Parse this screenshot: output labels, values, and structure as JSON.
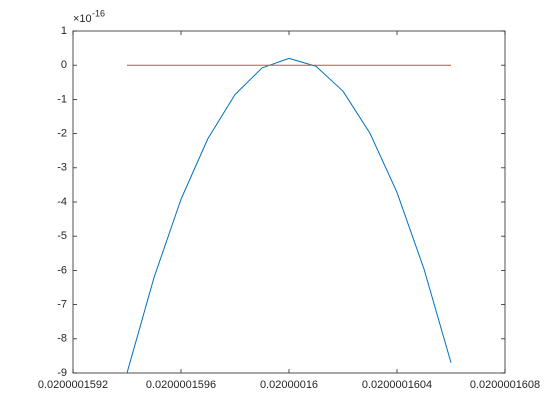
{
  "chart_data": {
    "type": "line",
    "axis_exponent_base": "×10",
    "axis_exponent": "-16",
    "x": [
      0.0200001594,
      0.0200001595,
      0.0200001596,
      0.0200001597,
      0.0200001598,
      0.0200001599,
      0.02000016,
      0.0200001601,
      0.0200001602,
      0.0200001603,
      0.0200001604,
      0.0200001605,
      0.0200001606
    ],
    "series": [
      {
        "color": "#0072bd",
        "values": [
          -9.0,
          -6.21,
          -3.92,
          -2.14,
          -0.86,
          -0.08,
          0.2,
          -0.03,
          -0.76,
          -1.99,
          -3.72,
          -5.96,
          -8.7
        ]
      },
      {
        "color": "#d95319",
        "values": [
          0,
          0,
          0,
          0,
          0,
          0,
          0,
          0,
          0,
          0,
          0,
          0,
          0
        ]
      }
    ],
    "xlim": [
      0.0200001592,
      0.0200001608
    ],
    "xticks": [
      {
        "value": 0.0200001592,
        "label": "0.0200001592"
      },
      {
        "value": 0.0200001596,
        "label": "0.0200001596"
      },
      {
        "value": 0.02000016,
        "label": "0.02000016"
      },
      {
        "value": 0.0200001604,
        "label": "0.0200001604"
      },
      {
        "value": 0.0200001608,
        "label": "0.0200001608"
      }
    ],
    "ylim": [
      -9,
      1
    ],
    "yticks": [
      -9,
      -8,
      -7,
      -6,
      -5,
      -4,
      -3,
      -2,
      -1,
      0,
      1
    ],
    "grid": false
  }
}
